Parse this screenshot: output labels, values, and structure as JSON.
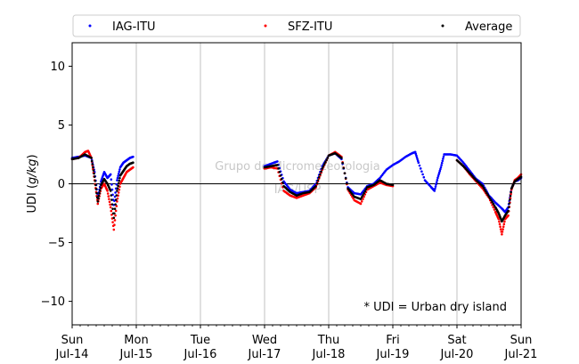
{
  "chart_data": {
    "type": "scatter",
    "ylabel_prefix": "UDI (",
    "ylabel_var": "g/kg",
    "ylabel_suffix": ")",
    "ylim": [
      -12,
      12
    ],
    "yticks": [
      -10,
      -5,
      0,
      5,
      10
    ],
    "xlim_days": [
      0,
      7
    ],
    "xtick_days": [
      "Sun\nJul-14",
      "Mon\nJul-15",
      "Tue\nJul-16",
      "Wed\nJul-17",
      "Thu\nJul-18",
      "Fri\nJul-19",
      "Sat\nJul-20",
      "Sun\nJul-21"
    ],
    "xticks": [
      {
        "day": "Sun",
        "date": "Jul-14"
      },
      {
        "day": "Mon",
        "date": "Jul-15"
      },
      {
        "day": "Tue",
        "date": "Jul-16"
      },
      {
        "day": "Wed",
        "date": "Jul-17"
      },
      {
        "day": "Thu",
        "date": "Jul-18"
      },
      {
        "day": "Fri",
        "date": "Jul-19"
      },
      {
        "day": "Sat",
        "date": "Jul-20"
      },
      {
        "day": "Sun",
        "date": "Jul-21"
      }
    ],
    "grid": "x-major",
    "zero_line": true,
    "legend_position": "top",
    "annotation": "* UDI = Urban dry island",
    "watermark_line1": "Grupo de Micrometeorologia",
    "watermark_line2": "IAG/USP",
    "series": [
      {
        "name": "IAG-ITU",
        "color": "#0000ff",
        "points": [
          [
            0.0,
            2.2
          ],
          [
            0.1,
            2.3
          ],
          [
            0.2,
            2.4
          ],
          [
            0.3,
            2.2
          ],
          [
            0.35,
            1.0
          ],
          [
            0.4,
            -1.2
          ],
          [
            0.45,
            0.2
          ],
          [
            0.5,
            1.0
          ],
          [
            0.55,
            0.5
          ],
          [
            0.6,
            0.8
          ],
          [
            0.65,
            -1.8
          ],
          [
            0.7,
            0.3
          ],
          [
            0.75,
            1.4
          ],
          [
            0.8,
            1.8
          ],
          [
            0.85,
            2.0
          ],
          [
            0.9,
            2.2
          ],
          [
            0.95,
            2.3
          ],
          [
            3.0,
            1.5
          ],
          [
            3.1,
            1.7
          ],
          [
            3.2,
            1.9
          ],
          [
            3.3,
            0.2
          ],
          [
            3.4,
            -0.5
          ],
          [
            3.5,
            -0.8
          ],
          [
            3.6,
            -0.7
          ],
          [
            3.7,
            -0.6
          ],
          [
            3.8,
            0.0
          ],
          [
            3.9,
            1.5
          ],
          [
            4.0,
            2.4
          ],
          [
            4.1,
            2.6
          ],
          [
            4.2,
            2.1
          ],
          [
            4.3,
            -0.3
          ],
          [
            4.4,
            -0.8
          ],
          [
            4.5,
            -0.9
          ],
          [
            4.6,
            -0.2
          ],
          [
            4.7,
            0.0
          ],
          [
            4.8,
            0.5
          ],
          [
            4.9,
            1.2
          ],
          [
            5.0,
            1.6
          ],
          [
            5.1,
            1.9
          ],
          [
            5.2,
            2.3
          ],
          [
            5.3,
            2.6
          ],
          [
            5.35,
            2.7
          ],
          [
            5.4,
            1.8
          ],
          [
            5.5,
            0.3
          ],
          [
            5.6,
            -0.3
          ],
          [
            5.65,
            -0.6
          ],
          [
            5.7,
            0.5
          ],
          [
            5.75,
            1.4
          ],
          [
            5.8,
            2.5
          ],
          [
            5.9,
            2.5
          ],
          [
            6.0,
            2.4
          ],
          [
            6.1,
            1.8
          ],
          [
            6.2,
            1.1
          ],
          [
            6.3,
            0.4
          ],
          [
            6.4,
            0.0
          ],
          [
            6.5,
            -1.0
          ],
          [
            6.6,
            -1.6
          ],
          [
            6.7,
            -2.1
          ],
          [
            6.75,
            -2.4
          ],
          [
            6.8,
            -2.0
          ],
          [
            6.85,
            -0.4
          ],
          [
            6.9,
            0.2
          ],
          [
            6.95,
            0.3
          ],
          [
            7.0,
            0.5
          ]
        ]
      },
      {
        "name": "SFZ-ITU",
        "color": "#ff0000",
        "points": [
          [
            0.0,
            2.1
          ],
          [
            0.1,
            2.2
          ],
          [
            0.2,
            2.7
          ],
          [
            0.25,
            2.8
          ],
          [
            0.3,
            2.2
          ],
          [
            0.35,
            0.3
          ],
          [
            0.4,
            -1.7
          ],
          [
            0.45,
            -0.4
          ],
          [
            0.5,
            0.0
          ],
          [
            0.55,
            -0.6
          ],
          [
            0.6,
            -2.0
          ],
          [
            0.65,
            -3.9
          ],
          [
            0.7,
            -1.5
          ],
          [
            0.75,
            0.0
          ],
          [
            0.8,
            0.5
          ],
          [
            0.85,
            1.0
          ],
          [
            0.9,
            1.2
          ],
          [
            0.95,
            1.4
          ],
          [
            3.0,
            1.3
          ],
          [
            3.1,
            1.4
          ],
          [
            3.2,
            1.3
          ],
          [
            3.3,
            -0.6
          ],
          [
            3.4,
            -1.0
          ],
          [
            3.5,
            -1.2
          ],
          [
            3.6,
            -1.0
          ],
          [
            3.7,
            -0.8
          ],
          [
            3.8,
            -0.3
          ],
          [
            3.9,
            1.2
          ],
          [
            4.0,
            2.4
          ],
          [
            4.1,
            2.7
          ],
          [
            4.2,
            2.3
          ],
          [
            4.3,
            -0.5
          ],
          [
            4.4,
            -1.4
          ],
          [
            4.5,
            -1.7
          ],
          [
            4.6,
            -0.5
          ],
          [
            4.7,
            -0.2
          ],
          [
            4.8,
            0.1
          ],
          [
            4.9,
            -0.1
          ],
          [
            5.0,
            -0.2
          ],
          [
            6.0,
            2.0
          ],
          [
            6.1,
            1.5
          ],
          [
            6.2,
            0.8
          ],
          [
            6.3,
            0.2
          ],
          [
            6.4,
            -0.4
          ],
          [
            6.5,
            -1.2
          ],
          [
            6.6,
            -2.4
          ],
          [
            6.65,
            -3.0
          ],
          [
            6.7,
            -4.3
          ],
          [
            6.75,
            -3.0
          ],
          [
            6.8,
            -2.7
          ],
          [
            6.85,
            -0.5
          ],
          [
            6.9,
            0.3
          ],
          [
            6.95,
            0.5
          ],
          [
            7.0,
            0.8
          ]
        ]
      },
      {
        "name": "Average",
        "color": "#000000",
        "points": [
          [
            0.0,
            2.1
          ],
          [
            0.1,
            2.2
          ],
          [
            0.2,
            2.5
          ],
          [
            0.3,
            2.2
          ],
          [
            0.35,
            0.6
          ],
          [
            0.4,
            -1.5
          ],
          [
            0.45,
            -0.1
          ],
          [
            0.5,
            0.4
          ],
          [
            0.55,
            0.0
          ],
          [
            0.6,
            -0.6
          ],
          [
            0.65,
            -2.9
          ],
          [
            0.7,
            -0.6
          ],
          [
            0.75,
            0.7
          ],
          [
            0.8,
            1.1
          ],
          [
            0.85,
            1.5
          ],
          [
            0.9,
            1.7
          ],
          [
            0.95,
            1.8
          ],
          [
            3.0,
            1.4
          ],
          [
            3.1,
            1.5
          ],
          [
            3.2,
            1.6
          ],
          [
            3.3,
            -0.2
          ],
          [
            3.4,
            -0.7
          ],
          [
            3.5,
            -1.0
          ],
          [
            3.6,
            -0.8
          ],
          [
            3.7,
            -0.7
          ],
          [
            3.8,
            -0.2
          ],
          [
            3.9,
            1.3
          ],
          [
            4.0,
            2.4
          ],
          [
            4.1,
            2.6
          ],
          [
            4.2,
            2.2
          ],
          [
            4.3,
            -0.4
          ],
          [
            4.4,
            -1.1
          ],
          [
            4.5,
            -1.3
          ],
          [
            4.6,
            -0.3
          ],
          [
            4.7,
            -0.1
          ],
          [
            4.8,
            0.3
          ],
          [
            4.9,
            0.0
          ],
          [
            5.0,
            -0.1
          ],
          [
            6.0,
            2.0
          ],
          [
            6.1,
            1.5
          ],
          [
            6.2,
            0.9
          ],
          [
            6.3,
            0.3
          ],
          [
            6.4,
            -0.2
          ],
          [
            6.5,
            -1.1
          ],
          [
            6.6,
            -2.0
          ],
          [
            6.65,
            -2.5
          ],
          [
            6.7,
            -3.2
          ],
          [
            6.75,
            -2.7
          ],
          [
            6.8,
            -2.3
          ],
          [
            6.85,
            -0.4
          ],
          [
            6.9,
            0.2
          ],
          [
            6.95,
            0.4
          ],
          [
            7.0,
            0.6
          ]
        ]
      }
    ]
  }
}
